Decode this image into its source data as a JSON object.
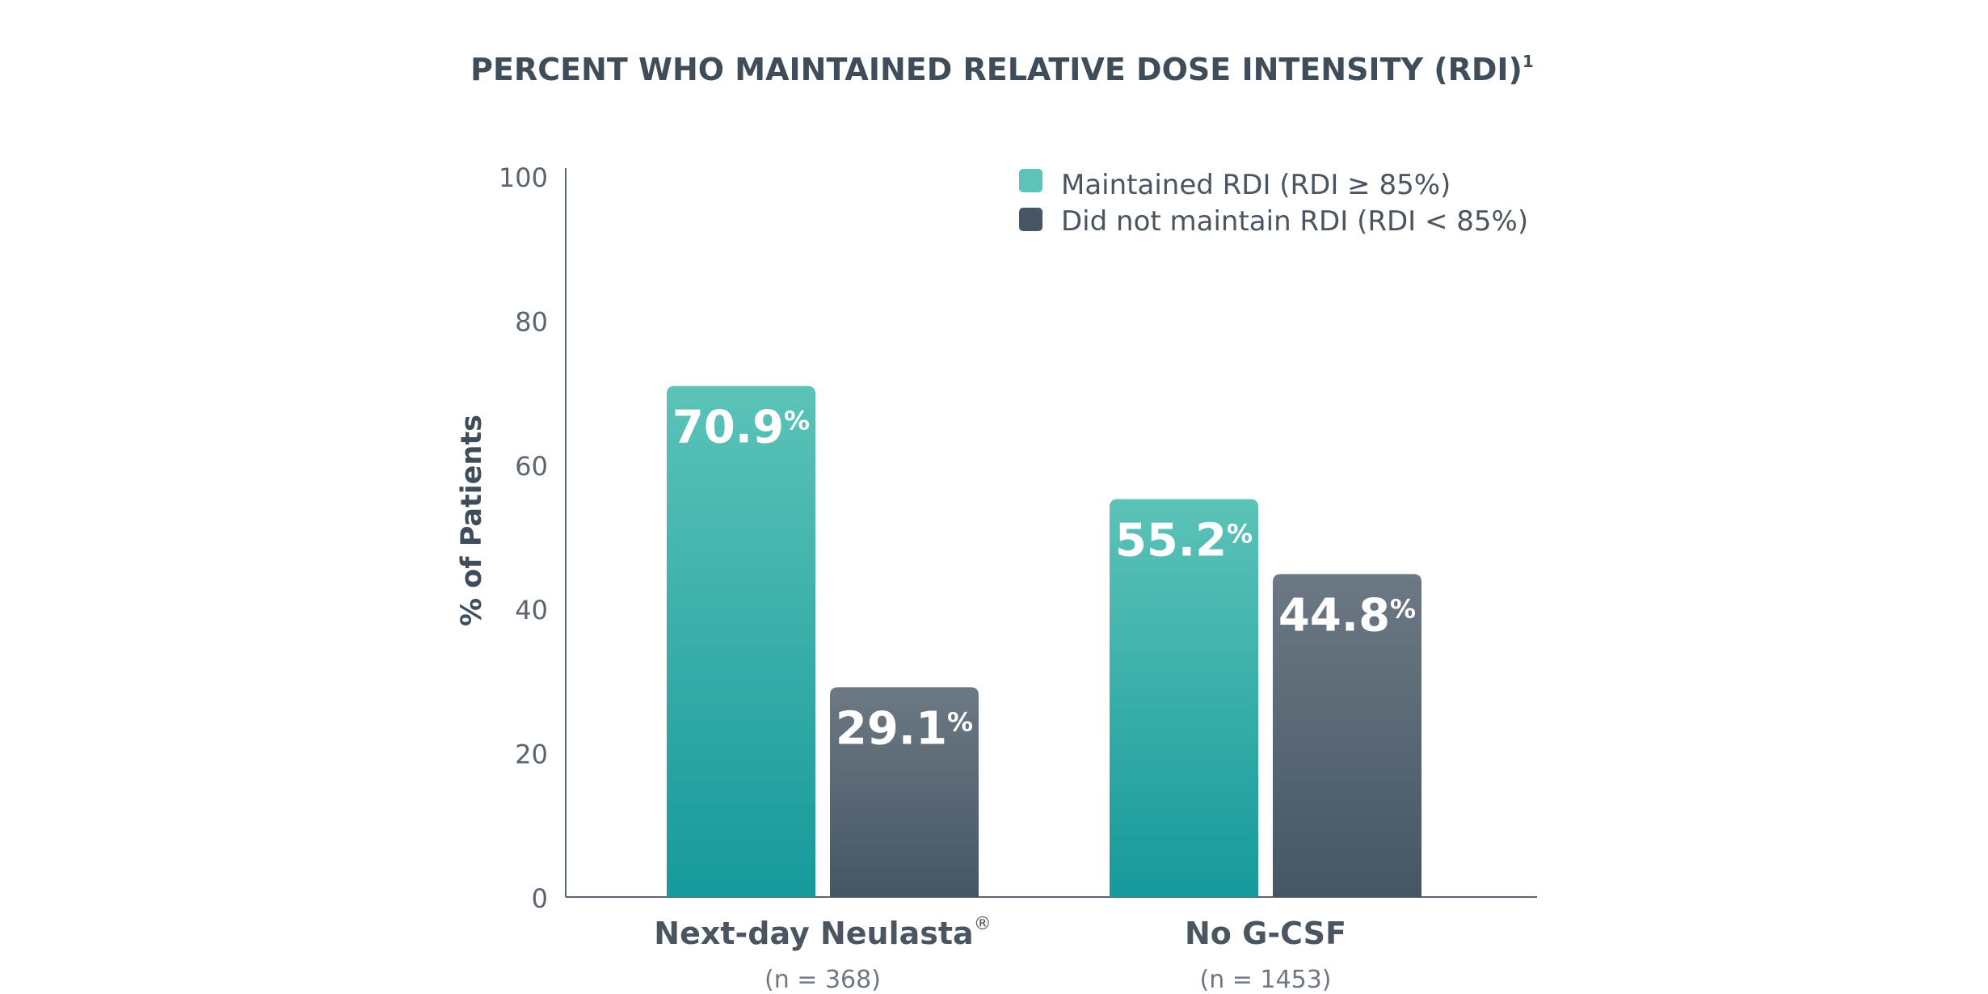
{
  "chart_data": {
    "type": "bar",
    "title": "PERCENT WHO MAINTAINED RELATIVE DOSE INTENSITY (RDI)",
    "title_superscript": "1",
    "ylabel": "% of Patients",
    "xlabel": "",
    "ylim": [
      0,
      100
    ],
    "yticks": [
      0,
      20,
      40,
      60,
      80,
      100
    ],
    "grid": false,
    "legend_position": "top-right",
    "categories": [
      {
        "label": "Next-day Neulasta",
        "mark": "®",
        "sublabel": "(n = 368)"
      },
      {
        "label": "No G-CSF",
        "mark": "",
        "sublabel": "(n = 1453)"
      }
    ],
    "series": [
      {
        "name": "Maintained RDI (RDI ≥ 85%)",
        "values": [
          70.9,
          55.2
        ],
        "labels": [
          "70.9",
          "55.2"
        ],
        "color_top": "#5cc3b8",
        "color_bottom": "#16999b"
      },
      {
        "name": "Did not maintain RDI (RDI < 85%)",
        "values": [
          29.1,
          44.8
        ],
        "labels": [
          "29.1",
          "44.8"
        ],
        "color_top": "#6c7984",
        "color_bottom": "#465664"
      }
    ],
    "value_suffix": "%",
    "colors": {
      "axis": "#5b6570",
      "title": "#3f4c59"
    }
  }
}
